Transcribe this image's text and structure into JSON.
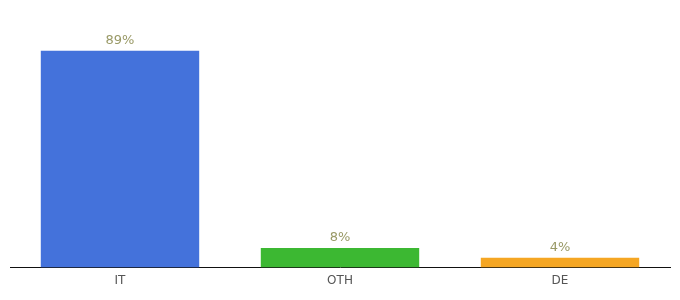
{
  "chart_data": {
    "type": "bar",
    "categories": [
      "IT",
      "OTH",
      "DE"
    ],
    "values": [
      89,
      8,
      4
    ],
    "value_labels": [
      "89%",
      "8%",
      "4%"
    ],
    "data_labels": true,
    "colors": [
      "#4472db",
      "#3cb832",
      "#f5a623"
    ],
    "ylim": [
      0,
      100
    ],
    "grid": false,
    "tick_labels": "x"
  }
}
